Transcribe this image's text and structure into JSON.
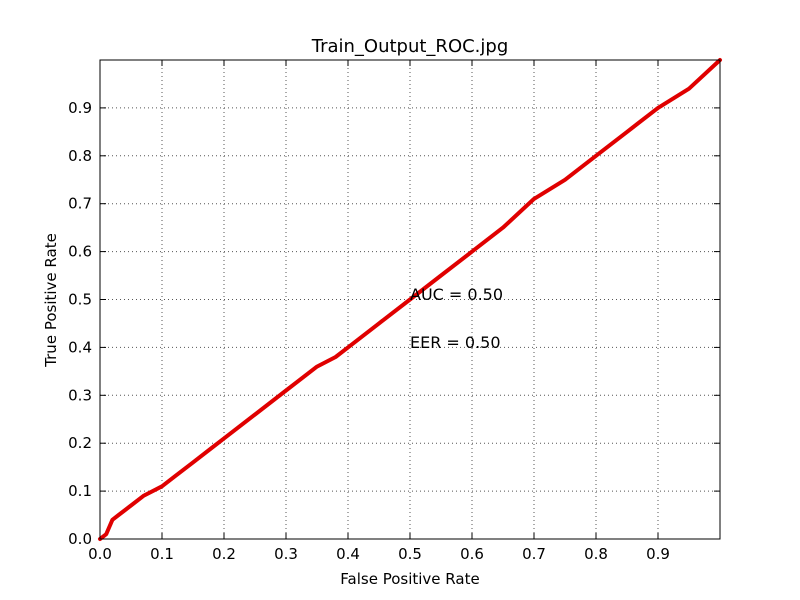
{
  "chart_data": {
    "type": "line",
    "title": "Train_Output_ROC.jpg",
    "xlabel": "False Positive Rate",
    "ylabel": "True Positive Rate",
    "xlim": [
      0,
      1
    ],
    "ylim": [
      0,
      1
    ],
    "grid": true,
    "xticks": [
      "0.0",
      "0.1",
      "0.2",
      "0.3",
      "0.4",
      "0.5",
      "0.6",
      "0.7",
      "0.8",
      "0.9"
    ],
    "yticks": [
      "0.0",
      "0.1",
      "0.2",
      "0.3",
      "0.4",
      "0.5",
      "0.6",
      "0.7",
      "0.8",
      "0.9"
    ],
    "series": [
      {
        "color": "#e00000",
        "x": [
          0.0,
          0.01,
          0.015,
          0.02,
          0.03,
          0.05,
          0.07,
          0.1,
          0.12,
          0.15,
          0.18,
          0.2,
          0.25,
          0.3,
          0.35,
          0.38,
          0.4,
          0.45,
          0.5,
          0.55,
          0.6,
          0.65,
          0.7,
          0.75,
          0.8,
          0.85,
          0.9,
          0.95,
          1.0
        ],
        "y": [
          0.0,
          0.01,
          0.025,
          0.04,
          0.05,
          0.07,
          0.09,
          0.11,
          0.13,
          0.16,
          0.19,
          0.21,
          0.26,
          0.31,
          0.36,
          0.38,
          0.4,
          0.45,
          0.5,
          0.55,
          0.6,
          0.65,
          0.71,
          0.75,
          0.8,
          0.85,
          0.9,
          0.94,
          1.0
        ]
      }
    ],
    "annotations": [
      "AUC = 0.50",
      "EER = 0.50"
    ]
  }
}
